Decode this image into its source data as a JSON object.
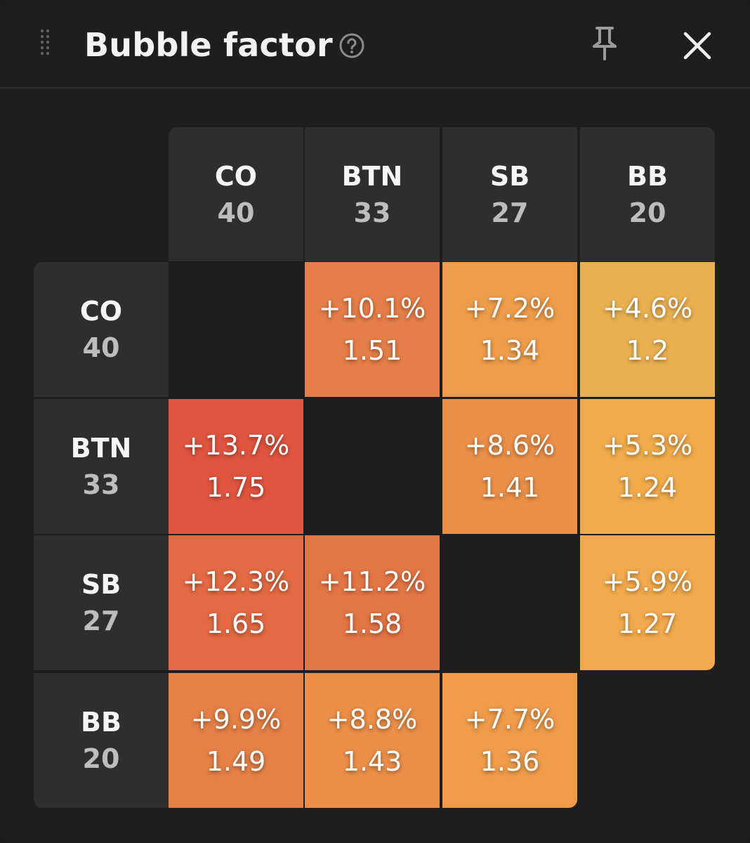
{
  "window": {
    "title": "Bubble factor",
    "icons": {
      "drag": "drag-handle-icon",
      "help": "help-circle-icon",
      "pin": "pin-icon",
      "close": "close-icon"
    }
  },
  "colors": {
    "background": "#1e1e1e",
    "header_cell": "#2e2e2e",
    "stack_text": "#bdbdbd"
  },
  "positions": [
    {
      "name": "CO",
      "stack": "40"
    },
    {
      "name": "BTN",
      "stack": "33"
    },
    {
      "name": "SB",
      "stack": "27"
    },
    {
      "name": "BB",
      "stack": "20"
    }
  ],
  "matrix": [
    [
      null,
      {
        "pct": "+10.1%",
        "factor": "1.51",
        "color": "#e57e48"
      },
      {
        "pct": "+7.2%",
        "factor": "1.34",
        "color": "#ed9c4a"
      },
      {
        "pct": "+4.6%",
        "factor": "1.2",
        "color": "#e9b050"
      }
    ],
    [
      {
        "pct": "+13.7%",
        "factor": "1.75",
        "color": "#e0543f"
      },
      null,
      {
        "pct": "+8.6%",
        "factor": "1.41",
        "color": "#ea8f48"
      },
      {
        "pct": "+5.3%",
        "factor": "1.24",
        "color": "#f0aa4a"
      }
    ],
    [
      {
        "pct": "+12.3%",
        "factor": "1.65",
        "color": "#e36a43"
      },
      {
        "pct": "+11.2%",
        "factor": "1.58",
        "color": "#e47545"
      },
      null,
      {
        "pct": "+5.9%",
        "factor": "1.27",
        "color": "#f2a94c"
      }
    ],
    [
      {
        "pct": "+9.9%",
        "factor": "1.49",
        "color": "#e58046"
      },
      {
        "pct": "+8.8%",
        "factor": "1.43",
        "color": "#eb8e48"
      },
      {
        "pct": "+7.7%",
        "factor": "1.36",
        "color": "#ee9b4a"
      },
      null
    ]
  ]
}
